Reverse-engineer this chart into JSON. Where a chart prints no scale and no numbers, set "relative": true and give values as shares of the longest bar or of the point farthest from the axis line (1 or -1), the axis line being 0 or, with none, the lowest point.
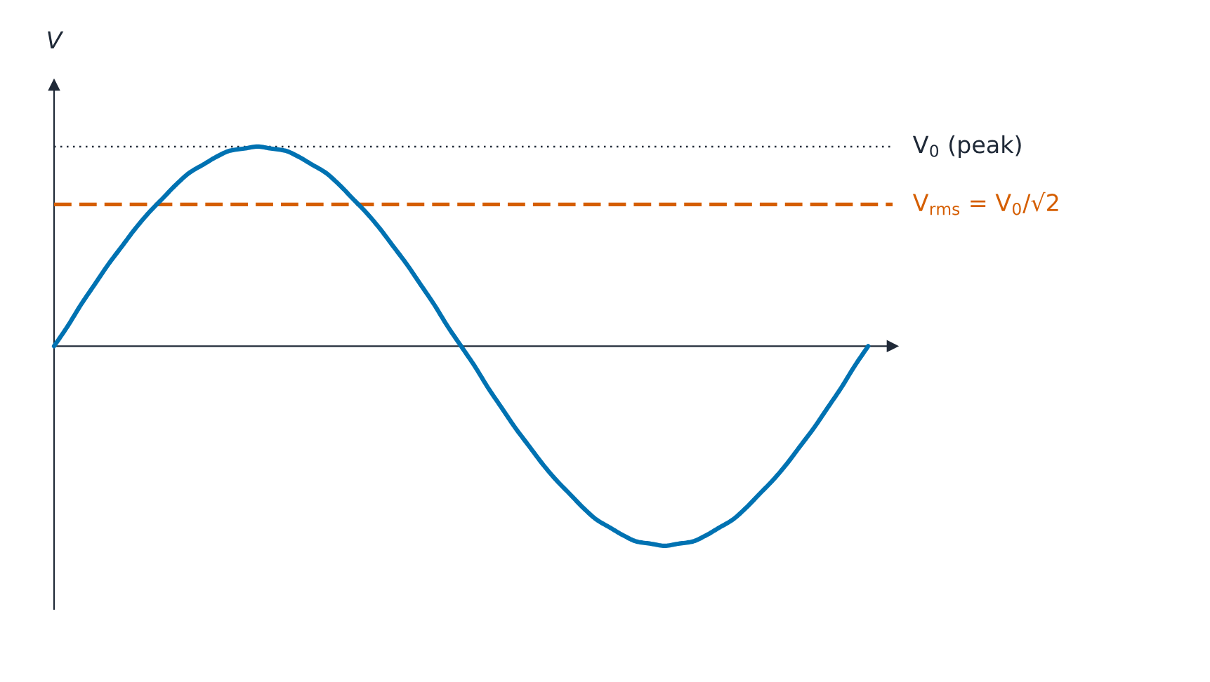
{
  "chart_data": {
    "type": "line",
    "relative": true,
    "ylabel": "V",
    "categories": [
      null,
      null,
      null,
      null,
      null,
      null,
      null,
      null,
      null,
      null,
      null,
      null,
      null,
      null,
      null,
      null,
      null,
      null,
      null,
      null,
      null,
      null,
      null,
      null,
      null,
      null,
      null,
      null,
      null,
      null,
      null,
      null,
      null,
      null,
      null,
      null,
      null,
      null,
      null,
      null,
      null,
      null,
      null,
      null,
      null,
      null,
      null,
      null,
      null,
      null,
      null,
      null,
      null,
      null,
      null,
      null,
      null,
      null,
      null,
      null,
      null
    ],
    "series": [
      {
        "color": "#0072b2",
        "values": [
          0,
          0.1,
          0.21,
          0.31,
          0.41,
          0.5,
          0.59,
          0.67,
          0.74,
          0.81,
          0.87,
          0.91,
          0.95,
          0.98,
          0.99,
          1,
          0.99,
          0.98,
          0.95,
          0.91,
          0.87,
          0.81,
          0.74,
          0.67,
          0.59,
          0.5,
          0.41,
          0.31,
          0.21,
          0.1,
          0,
          -0.1,
          -0.21,
          -0.31,
          -0.41,
          -0.5,
          -0.59,
          -0.67,
          -0.74,
          -0.81,
          -0.87,
          -0.91,
          -0.95,
          -0.98,
          -0.99,
          -1,
          -0.99,
          -0.98,
          -0.95,
          -0.91,
          -0.87,
          -0.81,
          -0.74,
          -0.67,
          -0.59,
          -0.5,
          -0.41,
          -0.31,
          -0.21,
          -0.1,
          0
        ]
      }
    ],
    "ref_lines": [
      {
        "axis": "y",
        "value": 1,
        "label": "V$_{0}$ (peak)",
        "color": "#1f2937",
        "line_style": "dotted"
      },
      {
        "axis": "y",
        "value": 0.71,
        "label": "V$_{rms}$ = V$_{0}$/√2",
        "color": "#d55e00",
        "line_style": "dashed"
      }
    ]
  }
}
